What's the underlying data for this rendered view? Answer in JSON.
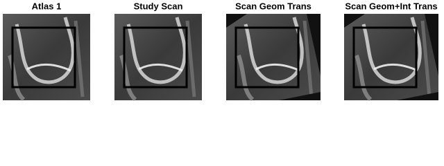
{
  "panels": [
    {
      "title": "Atlas 1"
    },
    {
      "title": "Study Scan"
    },
    {
      "title": "Scan Geom Trans"
    },
    {
      "title": "Scan Geom+Int Trans"
    }
  ]
}
